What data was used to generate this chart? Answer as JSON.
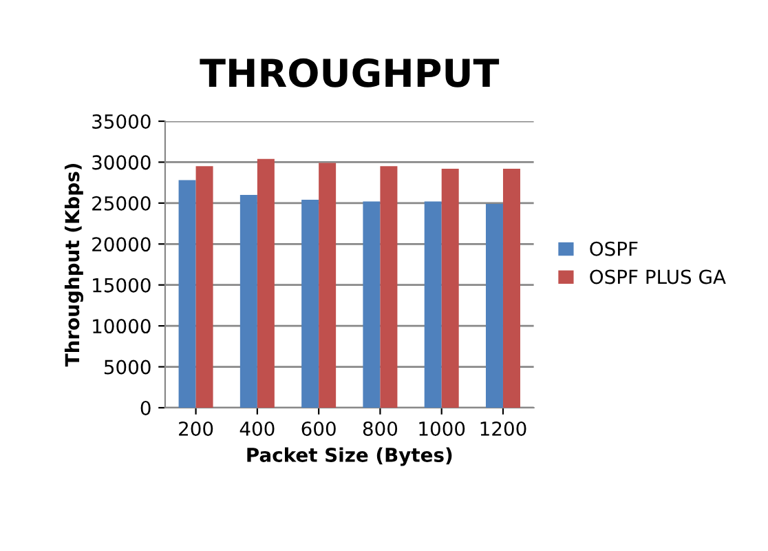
{
  "chart_data": {
    "type": "bar",
    "title": "THROUGHPUT",
    "xlabel": "Packet Size (Bytes)",
    "ylabel": "Throughput (Kbps)",
    "categories": [
      "200",
      "400",
      "600",
      "800",
      "1000",
      "1200"
    ],
    "series": [
      {
        "name": "OSPF",
        "color": "#4f81bd",
        "values": [
          27800,
          26000,
          25400,
          25200,
          25200,
          24900
        ]
      },
      {
        "name": "OSPF PLUS GA",
        "color": "#c0504d",
        "values": [
          29500,
          30400,
          29900,
          29500,
          29200,
          29200
        ]
      }
    ],
    "ylim": [
      0,
      35000
    ],
    "yticks": [
      0,
      5000,
      10000,
      15000,
      20000,
      25000,
      30000,
      35000
    ],
    "grid": "y",
    "legend": "right"
  }
}
